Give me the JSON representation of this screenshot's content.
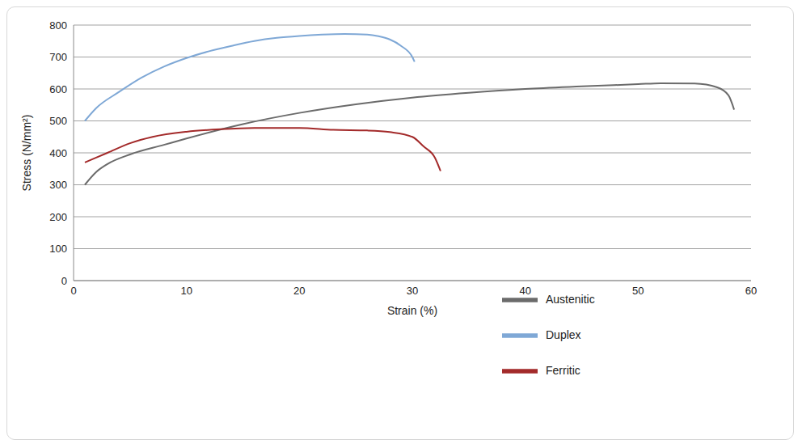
{
  "chart_data": {
    "type": "line",
    "x_label": "Strain (%)",
    "y_label": "Stress (N/mm²)",
    "xlim": [
      0,
      60
    ],
    "xticks": [
      0,
      10,
      20,
      30,
      40,
      50,
      60
    ],
    "ylim": [
      0,
      800
    ],
    "yticks": [
      0,
      100,
      200,
      300,
      400,
      500,
      600,
      700,
      800
    ],
    "grid": true,
    "legend": "lower right",
    "series": [
      {
        "name": "Duplex",
        "color": "#7fa8d6",
        "x": [
          1,
          2,
          4,
          6,
          8,
          10,
          12,
          14,
          16,
          18,
          20,
          22,
          24,
          26,
          27,
          28,
          29,
          30,
          30.2
        ],
        "values": [
          500,
          540,
          590,
          635,
          670,
          697,
          718,
          735,
          750,
          760,
          766,
          770,
          772,
          770,
          765,
          755,
          735,
          700,
          685
        ]
      },
      {
        "name": "Austenitic",
        "color": "#6b6b6b",
        "x": [
          1,
          2,
          3,
          5,
          8,
          10,
          15,
          20,
          25,
          30,
          35,
          40,
          45,
          50,
          52,
          55,
          57,
          58,
          58.5
        ],
        "values": [
          300,
          340,
          365,
          395,
          425,
          445,
          490,
          525,
          552,
          573,
          588,
          600,
          608,
          615,
          618,
          617,
          605,
          580,
          535
        ]
      },
      {
        "name": "Ferritic",
        "color": "#a32a2a",
        "x": [
          1,
          3,
          5,
          7,
          10,
          13,
          16,
          20,
          23,
          26,
          28,
          30,
          31,
          32,
          32.5
        ],
        "values": [
          370,
          400,
          430,
          450,
          466,
          474,
          478,
          478,
          472,
          470,
          465,
          450,
          420,
          385,
          343
        ]
      }
    ]
  }
}
